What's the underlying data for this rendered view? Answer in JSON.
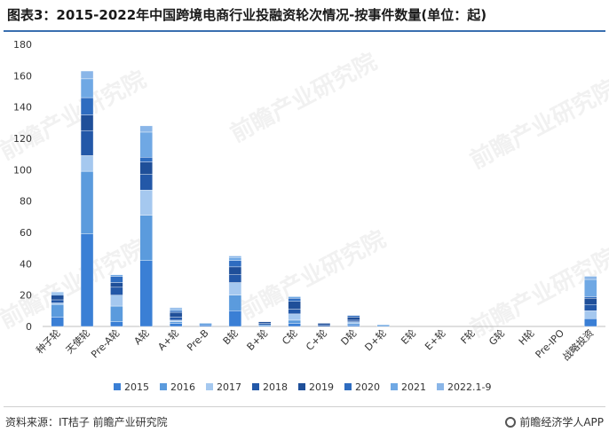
{
  "header": {
    "title": "图表3：2015-2022年中国跨境电商行业投融资轮次情况-按事件数量(单位：起)"
  },
  "footer": {
    "source": "资料来源：IT桔子 前瞻产业研究院",
    "brand": "前瞻经济学人APP"
  },
  "watermark": {
    "text": "前瞻产业研究院"
  },
  "colors": {
    "2015": "#3a7fd5",
    "2016": "#5b9bdd",
    "2017": "#a5c8ef",
    "2018": "#2358a8",
    "2019": "#1f4f99",
    "2020": "#2e6cc0",
    "2021": "#6fa8e4",
    "2022.1-9": "#8ab6e8"
  },
  "chart_data": {
    "type": "bar",
    "stacked": true,
    "categories": [
      "种子轮",
      "天使轮",
      "Pre-A轮",
      "A轮",
      "A+轮",
      "Pre-B",
      "B轮",
      "B+轮",
      "C轮",
      "C+轮",
      "D轮",
      "D+轮",
      "E轮",
      "E+轮",
      "F轮",
      "G轮",
      "H轮",
      "Pre-IPO",
      "战略投资"
    ],
    "series": [
      {
        "name": "2015",
        "values": [
          6,
          59,
          3,
          42,
          2,
          1,
          10,
          0,
          2,
          0,
          1,
          0,
          0,
          0,
          0,
          0,
          0,
          0,
          5
        ]
      },
      {
        "name": "2016",
        "values": [
          8,
          40,
          10,
          29,
          1,
          1,
          10,
          1,
          2,
          0,
          1,
          1,
          0,
          0,
          0,
          0,
          0,
          0,
          0
        ]
      },
      {
        "name": "2017",
        "values": [
          1,
          10,
          7,
          16,
          1,
          0,
          8,
          0,
          4,
          0,
          1,
          0,
          0,
          0,
          0,
          0,
          0,
          0,
          5
        ]
      },
      {
        "name": "2018",
        "values": [
          2,
          16,
          5,
          10,
          2,
          0,
          5,
          1,
          3,
          1,
          1,
          0,
          0,
          0,
          0,
          0,
          0,
          0,
          4
        ]
      },
      {
        "name": "2019",
        "values": [
          3,
          10,
          3,
          8,
          3,
          0,
          5,
          1,
          5,
          1,
          2,
          0,
          0,
          0,
          0,
          0,
          0,
          0,
          4
        ]
      },
      {
        "name": "2020",
        "values": [
          0,
          11,
          4,
          3,
          1,
          0,
          4,
          0,
          2,
          0,
          1,
          0,
          0,
          0,
          0,
          0,
          0,
          0,
          1
        ]
      },
      {
        "name": "2021",
        "values": [
          1,
          12,
          1,
          16,
          1,
          0,
          2,
          0,
          1,
          0,
          0,
          0,
          0,
          0,
          0,
          0,
          0,
          0,
          11
        ]
      },
      {
        "name": "2022.1-9",
        "values": [
          1,
          5,
          0,
          4,
          1,
          0,
          1,
          0,
          0,
          0,
          0,
          0,
          0,
          0,
          0,
          0,
          0,
          0,
          2
        ]
      }
    ],
    "ylim": [
      0,
      180
    ],
    "yticks": [
      0,
      20,
      40,
      60,
      80,
      100,
      120,
      140,
      160,
      180
    ],
    "grid": false,
    "legend": "bottom"
  }
}
